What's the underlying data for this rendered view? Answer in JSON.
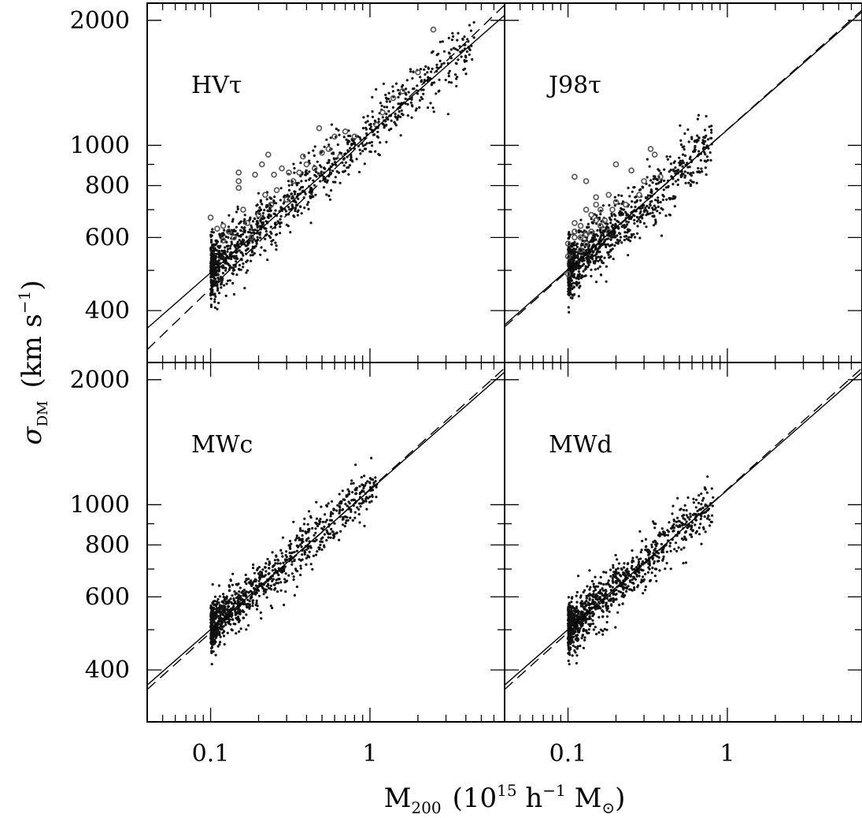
{
  "figure": {
    "ylabel": {
      "main": "σ",
      "sub": "DM",
      "rest": "(km s",
      "sup": "−1",
      "close": ")"
    },
    "xlabel": {
      "main": "M",
      "sub": "200",
      "rest1": "(10",
      "sup1": "15",
      "rest2": " h",
      "sup2": "−1",
      "rest3": " M",
      "sub2": "⊙",
      "close": ")"
    }
  },
  "chart_data": [
    {
      "type": "scatter",
      "title": "HVτ",
      "xscale": "log",
      "yscale": "log",
      "xlim": [
        0.04,
        7
      ],
      "ylim": [
        300,
        2200
      ],
      "xticklabels": [
        {
          "v": 0.1,
          "t": "0.1"
        },
        {
          "v": 1,
          "t": "1"
        }
      ],
      "yticklabels": [
        {
          "v": 400,
          "t": "400"
        },
        {
          "v": 600,
          "t": "600"
        },
        {
          "v": 800,
          "t": "800"
        },
        {
          "v": 1000,
          "t": "1000"
        },
        {
          "v": 2000,
          "t": "2000"
        }
      ],
      "points": {
        "n": 1200,
        "xmin": 0.1,
        "xmax": 4.5,
        "intercept_at_1": 1080,
        "slope": 0.336,
        "scatter_dex": 0.035
      },
      "outliers": [
        [
          0.1,
          670
        ],
        [
          0.11,
          630
        ],
        [
          0.12,
          590
        ],
        [
          0.12,
          640
        ],
        [
          0.13,
          620
        ],
        [
          0.14,
          600
        ],
        [
          0.15,
          860
        ],
        [
          0.15,
          820
        ],
        [
          0.15,
          790
        ],
        [
          0.16,
          700
        ],
        [
          0.17,
          650
        ],
        [
          0.18,
          600
        ],
        [
          0.19,
          850
        ],
        [
          0.2,
          680
        ],
        [
          0.21,
          900
        ],
        [
          0.22,
          760
        ],
        [
          0.23,
          950
        ],
        [
          0.24,
          720
        ],
        [
          0.25,
          850
        ],
        [
          0.26,
          780
        ],
        [
          0.28,
          880
        ],
        [
          0.3,
          740
        ],
        [
          0.31,
          860
        ],
        [
          0.33,
          820
        ],
        [
          0.36,
          860
        ],
        [
          0.38,
          940
        ],
        [
          0.4,
          900
        ],
        [
          0.45,
          880
        ],
        [
          0.48,
          1100
        ],
        [
          0.5,
          960
        ],
        [
          0.55,
          980
        ],
        [
          0.6,
          1050
        ],
        [
          0.65,
          940
        ],
        [
          0.7,
          1080
        ],
        [
          0.8,
          1050
        ],
        [
          1.1,
          1120
        ],
        [
          1.2,
          1200
        ],
        [
          1.4,
          1300
        ],
        [
          1.6,
          1350
        ],
        [
          2.0,
          1500
        ],
        [
          2.5,
          1900
        ]
      ],
      "fit_solid": {
        "slope": 0.336,
        "intercept_at_1": 1070
      },
      "fit_dashed": {
        "slope": 0.37,
        "intercept_at_1": 1060
      }
    },
    {
      "type": "scatter",
      "title": "J98τ",
      "xscale": "log",
      "yscale": "log",
      "xlim": [
        0.04,
        7
      ],
      "ylim": [
        300,
        2200
      ],
      "xticklabels": [
        {
          "v": 0.1,
          "t": "0.1"
        },
        {
          "v": 1,
          "t": "1"
        }
      ],
      "yticklabels": [],
      "points": {
        "n": 1000,
        "xmin": 0.1,
        "xmax": 0.8,
        "intercept_at_1": 1090,
        "slope": 0.336,
        "scatter_dex": 0.035
      },
      "outliers": [
        [
          0.1,
          490
        ],
        [
          0.1,
          540
        ],
        [
          0.1,
          580
        ],
        [
          0.11,
          600
        ],
        [
          0.11,
          620
        ],
        [
          0.11,
          650
        ],
        [
          0.11,
          840
        ],
        [
          0.12,
          560
        ],
        [
          0.12,
          600
        ],
        [
          0.12,
          640
        ],
        [
          0.13,
          580
        ],
        [
          0.13,
          610
        ],
        [
          0.13,
          700
        ],
        [
          0.13,
          820
        ],
        [
          0.14,
          620
        ],
        [
          0.14,
          680
        ],
        [
          0.15,
          660
        ],
        [
          0.15,
          720
        ],
        [
          0.15,
          750
        ],
        [
          0.16,
          640
        ],
        [
          0.16,
          700
        ],
        [
          0.17,
          660
        ],
        [
          0.18,
          620
        ],
        [
          0.18,
          760
        ],
        [
          0.19,
          700
        ],
        [
          0.2,
          730
        ],
        [
          0.2,
          900
        ],
        [
          0.23,
          720
        ],
        [
          0.25,
          870
        ],
        [
          0.28,
          760
        ],
        [
          0.3,
          820
        ],
        [
          0.33,
          980
        ],
        [
          0.35,
          950
        ],
        [
          0.38,
          840
        ]
      ],
      "fit_solid": {
        "slope": 0.336,
        "intercept_at_1": 1090
      },
      "fit_dashed": {
        "slope": 0.34,
        "intercept_at_1": 1092
      }
    },
    {
      "type": "scatter",
      "title": "MWc",
      "xscale": "log",
      "yscale": "log",
      "xlim": [
        0.04,
        7
      ],
      "ylim": [
        300,
        2200
      ],
      "xticklabels": [
        {
          "v": 0.1,
          "t": "0.1"
        },
        {
          "v": 1,
          "t": "1"
        }
      ],
      "yticklabels": [
        {
          "v": 400,
          "t": "400"
        },
        {
          "v": 600,
          "t": "600"
        },
        {
          "v": 800,
          "t": "800"
        },
        {
          "v": 1000,
          "t": "1000"
        },
        {
          "v": 2000,
          "t": "2000"
        }
      ],
      "points": {
        "n": 1000,
        "xmin": 0.1,
        "xmax": 1.1,
        "intercept_at_1": 1090,
        "slope": 0.336,
        "scatter_dex": 0.03
      },
      "outliers": [],
      "fit_solid": {
        "slope": 0.336,
        "intercept_at_1": 1085
      },
      "fit_dashed": {
        "slope": 0.345,
        "intercept_at_1": 1090
      }
    },
    {
      "type": "scatter",
      "title": "MWd",
      "xscale": "log",
      "yscale": "log",
      "xlim": [
        0.04,
        7
      ],
      "ylim": [
        300,
        2200
      ],
      "xticklabels": [
        {
          "v": 0.1,
          "t": "0.1"
        },
        {
          "v": 1,
          "t": "1"
        }
      ],
      "yticklabels": [],
      "points": {
        "n": 1000,
        "xmin": 0.1,
        "xmax": 0.8,
        "intercept_at_1": 1090,
        "slope": 0.336,
        "scatter_dex": 0.03
      },
      "outliers": [],
      "fit_solid": {
        "slope": 0.336,
        "intercept_at_1": 1085
      },
      "fit_dashed": {
        "slope": 0.345,
        "intercept_at_1": 1090
      }
    }
  ]
}
